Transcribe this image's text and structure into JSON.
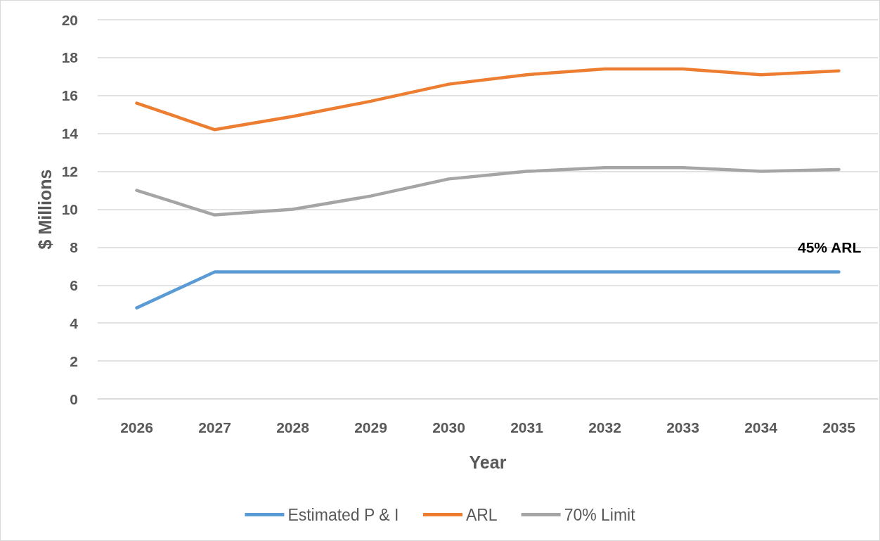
{
  "chart_data": {
    "type": "line",
    "xlabel": "Year",
    "ylabel": "$ Millions",
    "categories": [
      "2026",
      "2027",
      "2028",
      "2029",
      "2030",
      "2031",
      "2032",
      "2033",
      "2034",
      "2035"
    ],
    "series": [
      {
        "name": "Estimated P & I",
        "color": "#5b9bd5",
        "values": [
          4.8,
          6.7,
          6.7,
          6.7,
          6.7,
          6.7,
          6.7,
          6.7,
          6.7,
          6.7
        ]
      },
      {
        "name": "ARL",
        "color": "#ed7d31",
        "values": [
          15.6,
          14.2,
          14.9,
          15.7,
          16.6,
          17.1,
          17.4,
          17.4,
          17.1,
          17.3
        ]
      },
      {
        "name": "70% Limit",
        "color": "#a5a5a5",
        "values": [
          11.0,
          9.7,
          10.0,
          10.7,
          11.6,
          12.0,
          12.2,
          12.2,
          12.0,
          12.1
        ]
      }
    ],
    "ylim": [
      0,
      20
    ],
    "yticks": [
      0,
      2,
      4,
      6,
      8,
      10,
      12,
      14,
      16,
      18,
      20
    ],
    "grid": "y",
    "legend": "bottom",
    "marker": "none",
    "line_style": "solid",
    "annotations": [
      "45% ARL"
    ]
  }
}
